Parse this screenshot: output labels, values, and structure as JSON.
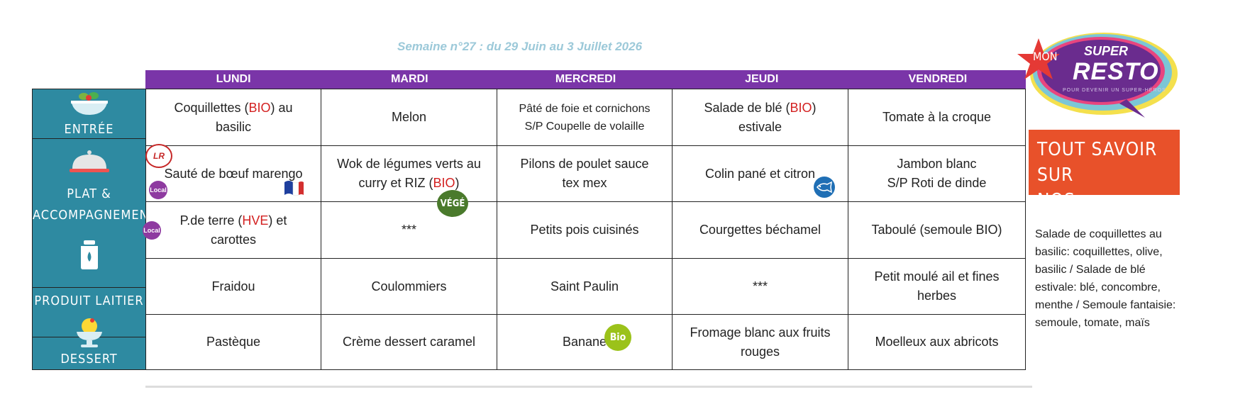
{
  "week_title": "Semaine n°27 : du 29 Juin au 3 Juillet 2026",
  "days": [
    "LUNDI",
    "MARDI",
    "MERCREDI",
    "JEUDI",
    "VENDREDI"
  ],
  "categories": [
    "ENTRÉE",
    "PLAT &",
    "ACCOMPAGNEMENT",
    "PRODUIT LAITIER",
    "DESSERT"
  ],
  "menu": {
    "entree": {
      "lundi_a": "Coquillettes (",
      "lundi_b": "BIO",
      "lundi_c": ") au",
      "lundi_d": "basilic",
      "mardi": "Melon",
      "mercredi_1": "Pâté de foie et cornichons",
      "mercredi_2": "S/P Coupelle de volaille",
      "jeudi_a": "Salade de blé (",
      "jeudi_b": "BIO",
      "jeudi_c": ")",
      "jeudi_d": "estivale",
      "vendredi": "Tomate à la croque"
    },
    "plat": {
      "lundi": "Sauté de bœuf marengo",
      "mardi_1": "Wok de légumes verts au",
      "mardi_2a": "curry et RIZ (",
      "mardi_2b": "BIO",
      "mardi_2c": ")",
      "mercredi_1": "Pilons de poulet sauce",
      "mercredi_2": "tex mex",
      "jeudi": "Colin pané et citron",
      "vendredi_1": "Jambon blanc",
      "vendredi_2": "S/P Roti de dinde"
    },
    "accompagnement": {
      "lundi_a": "P.de terre (",
      "lundi_b": "HVE",
      "lundi_c": ") et",
      "lundi_d": "carottes",
      "mardi": "***",
      "mercredi": "Petits pois cuisinés",
      "jeudi": "Courgettes béchamel",
      "vendredi": "Taboulé (semoule BIO)"
    },
    "laitier": {
      "lundi": "Fraidou",
      "mardi": "Coulommiers",
      "mercredi": "Saint Paulin",
      "jeudi": "***",
      "vendredi_1": "Petit moulé ail et fines",
      "vendredi_2": "herbes"
    },
    "dessert": {
      "lundi": "Pastèque",
      "mardi": "Crème dessert caramel",
      "mercredi": "Banane",
      "jeudi_1": "Fromage blanc aux fruits",
      "jeudi_2": "rouges",
      "vendredi": "Moelleux aux abricots"
    }
  },
  "badges": {
    "label_rouge": "LR",
    "local": "Local",
    "vege": "VÉGÉ",
    "bio": "Bio"
  },
  "logo": {
    "line1": "MON",
    "line2": "SUPER",
    "line3": "RESTO",
    "tagline": "POUR DEVENIR UN SUPER-HÉROS"
  },
  "recipes_box": {
    "line1": "TOUT SAVOIR SUR",
    "line2": "NOS RECETTES"
  },
  "recipes_note": "Salade de coquillettes au basilic: coquillettes, olive, basilic / Salade de blé estivale: blé, concombre, menthe / Semoule fantaisie: semoule, tomate, maïs",
  "colors": {
    "header": "#7a35a8",
    "sidebar": "#2e8aa1",
    "title": "#9cc9d9",
    "orange": "#e8512a",
    "bio_red": "#d32020"
  }
}
